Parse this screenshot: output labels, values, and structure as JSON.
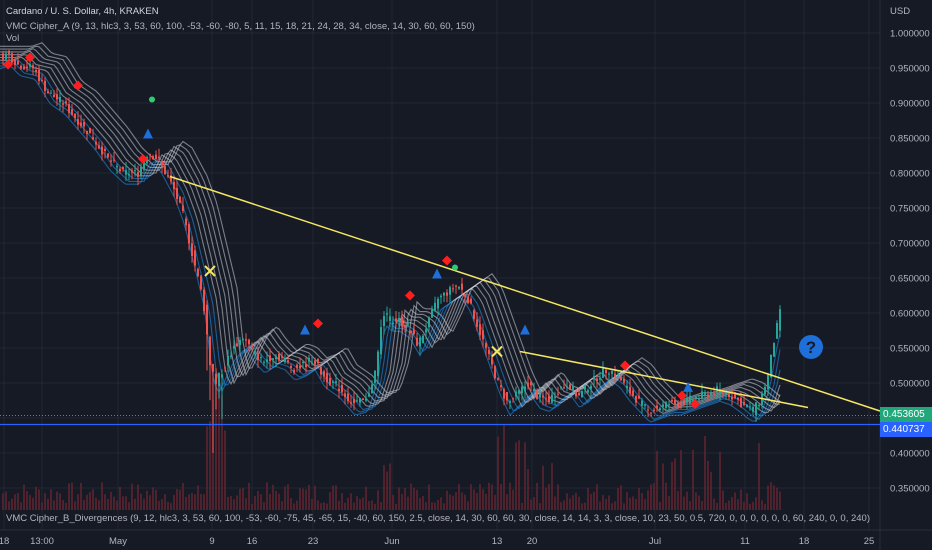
{
  "header": {
    "title": "Cardano / U. S. Dollar, 4h, KRAKEN",
    "indicator1": "VMC Cipher_A (9, 13, hlc3, 3, 53, 60, 100, -53, -60, -80, 5, 11, 15, 18, 21, 24, 28, 34, close, 14, 30, 60, 60, 150)",
    "volume": "Vol",
    "indicator2": "VMC Cipher_B_Divergences (9, 12, hlc3, 3, 53, 60, 100, -53, -60, -75, 45, -65, 15, -40, 60, 150, 2.5, close, 14, 30, 60, 60, 30, close, 14, 14, 3, 3, close, 10, 23, 50, 0.5, 720, 0, 0, 0, 0, 0, 0, 60, 240, 0, 0, 240)"
  },
  "price_axis": {
    "currency": "USD",
    "last_price": "0.453605",
    "line_price": "0.440737"
  },
  "chart_data": {
    "type": "candlestick",
    "symbol": "ADAUSD",
    "interval": "4h",
    "exchange": "KRAKEN",
    "y_ticks": [
      "1.000000",
      "0.950000",
      "0.900000",
      "0.850000",
      "0.800000",
      "0.750000",
      "0.700000",
      "0.650000",
      "0.600000",
      "0.550000",
      "0.500000",
      "0.450000",
      "0.400000",
      "0.350000"
    ],
    "ylim": [
      0.33,
      1.04
    ],
    "x_ticks": [
      "18",
      "13:00",
      "May",
      "9",
      "16",
      "23",
      "Jun",
      "13",
      "20",
      "Jul",
      "11",
      "18",
      "25"
    ],
    "price_path": [
      [
        0,
        0.965
      ],
      [
        10,
        0.97
      ],
      [
        20,
        0.955
      ],
      [
        35,
        0.95
      ],
      [
        50,
        0.915
      ],
      [
        65,
        0.9
      ],
      [
        80,
        0.875
      ],
      [
        95,
        0.85
      ],
      [
        110,
        0.82
      ],
      [
        125,
        0.8
      ],
      [
        140,
        0.8
      ],
      [
        150,
        0.83
      ],
      [
        160,
        0.82
      ],
      [
        175,
        0.78
      ],
      [
        185,
        0.74
      ],
      [
        195,
        0.68
      ],
      [
        205,
        0.62
      ],
      [
        212,
        0.53
      ],
      [
        218,
        0.5
      ],
      [
        225,
        0.52
      ],
      [
        235,
        0.55
      ],
      [
        245,
        0.565
      ],
      [
        255,
        0.545
      ],
      [
        265,
        0.53
      ],
      [
        275,
        0.54
      ],
      [
        285,
        0.535
      ],
      [
        295,
        0.52
      ],
      [
        305,
        0.525
      ],
      [
        315,
        0.535
      ],
      [
        325,
        0.51
      ],
      [
        340,
        0.495
      ],
      [
        355,
        0.47
      ],
      [
        368,
        0.475
      ],
      [
        378,
        0.52
      ],
      [
        385,
        0.6
      ],
      [
        392,
        0.59
      ],
      [
        400,
        0.59
      ],
      [
        410,
        0.58
      ],
      [
        420,
        0.555
      ],
      [
        430,
        0.585
      ],
      [
        440,
        0.62
      ],
      [
        450,
        0.63
      ],
      [
        460,
        0.64
      ],
      [
        470,
        0.62
      ],
      [
        480,
        0.58
      ],
      [
        490,
        0.54
      ],
      [
        500,
        0.5
      ],
      [
        510,
        0.47
      ],
      [
        520,
        0.485
      ],
      [
        530,
        0.5
      ],
      [
        540,
        0.48
      ],
      [
        550,
        0.475
      ],
      [
        560,
        0.49
      ],
      [
        570,
        0.5
      ],
      [
        580,
        0.48
      ],
      [
        590,
        0.495
      ],
      [
        600,
        0.51
      ],
      [
        610,
        0.52
      ],
      [
        620,
        0.51
      ],
      [
        630,
        0.49
      ],
      [
        640,
        0.475
      ],
      [
        650,
        0.46
      ],
      [
        660,
        0.465
      ],
      [
        670,
        0.47
      ],
      [
        680,
        0.47
      ],
      [
        690,
        0.475
      ],
      [
        700,
        0.48
      ],
      [
        710,
        0.485
      ],
      [
        720,
        0.49
      ],
      [
        730,
        0.485
      ],
      [
        740,
        0.475
      ],
      [
        748,
        0.465
      ],
      [
        755,
        0.46
      ],
      [
        762,
        0.475
      ],
      [
        770,
        0.51
      ],
      [
        776,
        0.56
      ],
      [
        782,
        0.6
      ]
    ],
    "trendlines": [
      {
        "from": [
          170,
          0.795
        ],
        "to": [
          880,
          0.46
        ],
        "color": "#f5e663"
      },
      {
        "from": [
          520,
          0.545
        ],
        "to": [
          808,
          0.465
        ],
        "color": "#f5e663"
      }
    ],
    "horizontal_line": {
      "value": 0.440737,
      "color": "#2962ff"
    },
    "colors": {
      "background": "#161a25",
      "up": "#26a69a",
      "down": "#ef5350",
      "ribbon": "#cfd3dc",
      "ribbon_low": "#2196f3",
      "volume": "#6b2a33"
    },
    "markers": [
      {
        "type": "diamond",
        "color": "#ff1e1e",
        "at": [
          8,
          0.955
        ]
      },
      {
        "type": "diamond",
        "color": "#ff1e1e",
        "at": [
          30,
          0.965
        ]
      },
      {
        "type": "diamond",
        "color": "#ff1e1e",
        "at": [
          78,
          0.925
        ]
      },
      {
        "type": "triangle",
        "color": "#1e6fd9",
        "at": [
          148,
          0.855
        ]
      },
      {
        "type": "diamond",
        "color": "#ff1e1e",
        "at": [
          143,
          0.82
        ]
      },
      {
        "type": "dot",
        "color": "#2ecc71",
        "at": [
          152,
          0.905
        ]
      },
      {
        "type": "cross",
        "color": "#f5e663",
        "at": [
          210,
          0.66
        ]
      },
      {
        "type": "triangle",
        "color": "#1e6fd9",
        "at": [
          305,
          0.575
        ]
      },
      {
        "type": "diamond",
        "color": "#ff1e1e",
        "at": [
          318,
          0.585
        ]
      },
      {
        "type": "diamond",
        "color": "#ff1e1e",
        "at": [
          410,
          0.625
        ]
      },
      {
        "type": "triangle",
        "color": "#1e6fd9",
        "at": [
          437,
          0.655
        ]
      },
      {
        "type": "diamond",
        "color": "#ff1e1e",
        "at": [
          447,
          0.675
        ]
      },
      {
        "type": "dot",
        "color": "#2ecc71",
        "at": [
          455,
          0.665
        ]
      },
      {
        "type": "cross",
        "color": "#f5e663",
        "at": [
          497,
          0.545
        ]
      },
      {
        "type": "triangle",
        "color": "#1e6fd9",
        "at": [
          525,
          0.575
        ]
      },
      {
        "type": "diamond",
        "color": "#ff1e1e",
        "at": [
          625,
          0.525
        ]
      },
      {
        "type": "diamond",
        "color": "#ff1e1e",
        "at": [
          682,
          0.482
        ]
      },
      {
        "type": "diamond",
        "color": "#ff1e1e",
        "at": [
          695,
          0.47
        ]
      },
      {
        "type": "triangle",
        "color": "#1e6fd9",
        "at": [
          688,
          0.493
        ]
      }
    ],
    "icon": "question-circle-icon"
  }
}
